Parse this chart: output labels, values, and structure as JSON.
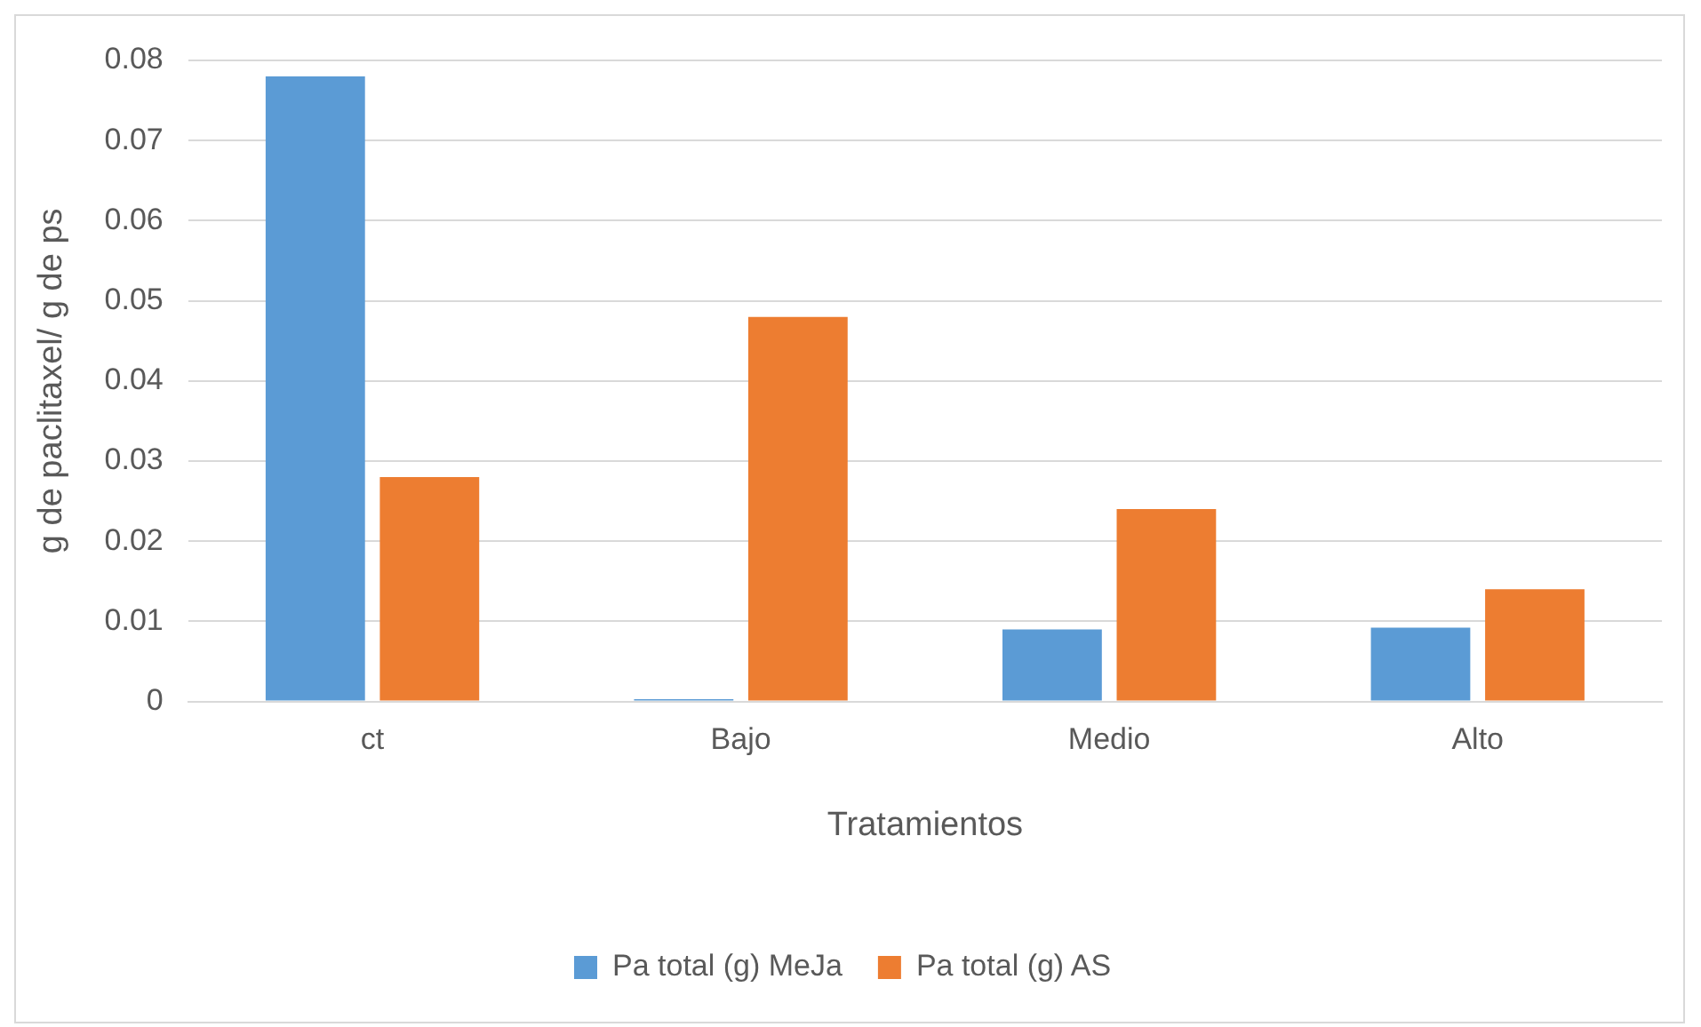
{
  "chart_data": {
    "type": "bar",
    "xlabel": "Tratamientos",
    "ylabel": "g de paclitaxel/ g de ps",
    "categories": [
      "ct",
      "Bajo",
      "Medio",
      "Alto"
    ],
    "series": [
      {
        "name": "Pa total (g) MeJa",
        "color": "#5b9bd5",
        "values": [
          0.078,
          0.0003,
          0.009,
          0.0092
        ]
      },
      {
        "name": "Pa total (g) AS",
        "color": "#ed7d31",
        "values": [
          0.028,
          0.048,
          0.024,
          0.014
        ]
      }
    ],
    "ylim": [
      0,
      0.08
    ],
    "yticks": [
      0,
      0.01,
      0.02,
      0.03,
      0.04,
      0.05,
      0.06,
      0.07,
      0.08
    ],
    "grid": "y",
    "legend": "bottom"
  }
}
